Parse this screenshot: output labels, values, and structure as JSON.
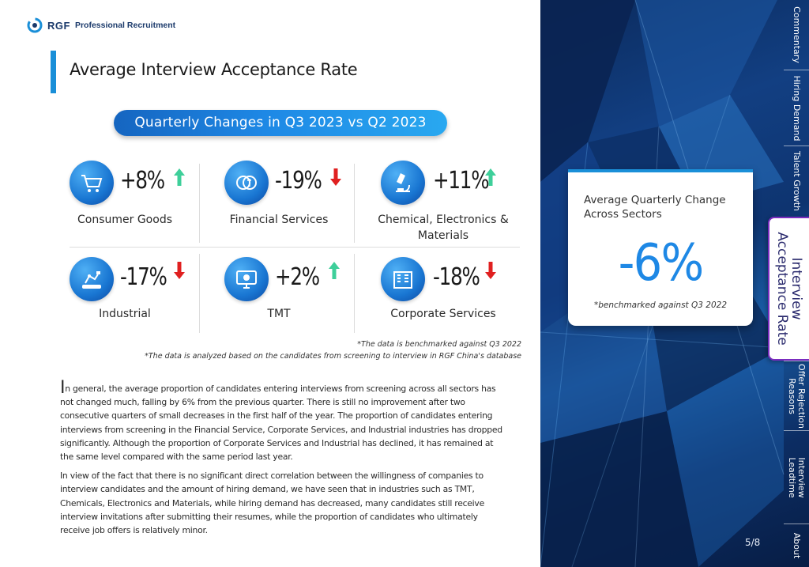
{
  "brand": {
    "logo_text": "RGF",
    "logo_subtitle": "Professional Recruitment"
  },
  "page": {
    "title": "Average Interview Acceptance Rate",
    "banner": "Quarterly Changes in Q3 2023 vs Q2 2023",
    "page_number": "5/8"
  },
  "sectors": [
    {
      "name": "Consumer Goods",
      "change": "+8%",
      "direction": "up",
      "icon": "shopping-cart-icon"
    },
    {
      "name": "Financial Services",
      "change": "-19%",
      "direction": "down",
      "icon": "money-icon"
    },
    {
      "name_line1": "Chemical, Electronics &",
      "name_line2": "Materials",
      "change": "+11%",
      "direction": "up",
      "icon": "microscope-icon"
    },
    {
      "name": "Industrial",
      "change": "-17%",
      "direction": "down",
      "icon": "robot-arm-icon"
    },
    {
      "name": "TMT",
      "change": "+2%",
      "direction": "up",
      "icon": "monitor-tech-icon"
    },
    {
      "name": "Corporate Services",
      "change": "-18%",
      "direction": "down",
      "icon": "office-building-icon"
    }
  ],
  "notes": {
    "benchmark": "*The data is benchmarked against Q3 2022",
    "source": "*The data is analyzed based on the candidates from screening to interview in RGF China's database"
  },
  "body": {
    "para1_dropcap": "I",
    "para1": "n general, the average proportion of candidates entering interviews from screening across all sectors has not changed much, falling by 6% from the previous quarter. There is still no improvement after two consecutive quarters of small decreases in the first half of the year. The proportion of candidates entering interviews from screening in the Financial Service, Corporate Services, and Industrial industries has dropped significantly. Although the proportion of Corporate Services and Industrial has declined, it has remained at the same level compared with the same period last year.",
    "para2": "In view of the fact that there is no significant direct correlation between the willingness of companies to interview candidates and the amount of hiring demand, we have seen that in industries such as TMT, Chemicals, Electronics and Materials, while hiring demand has decreased, many candidates still receive interview invitations after submitting their resumes, while the proportion of candidates who ultimately receive job offers is relatively minor."
  },
  "summary_card": {
    "label_line1": "Average Quarterly Change",
    "label_line2": "Across Sectors",
    "value": "-6%",
    "note": "*benchmarked against Q3 2022"
  },
  "tabs": [
    {
      "label": "Commentary",
      "active": false
    },
    {
      "label": "Hiring Demand",
      "active": false
    },
    {
      "label": "Talent Growth",
      "active": false
    },
    {
      "label_line1": "Interview",
      "label_line2": "Acceptance Rate",
      "active": true
    },
    {
      "label_line1": "Offer Rejection",
      "label_line2": "Reasons",
      "active": false
    },
    {
      "label_line1": "Interview",
      "label_line2": "Leadtime",
      "active": false
    },
    {
      "label": "About",
      "active": false
    }
  ],
  "colors": {
    "accent": "#1a8fd8",
    "up": "#3ecf9a",
    "down": "#e02020",
    "tab_active_border": "#7b2cbf"
  }
}
